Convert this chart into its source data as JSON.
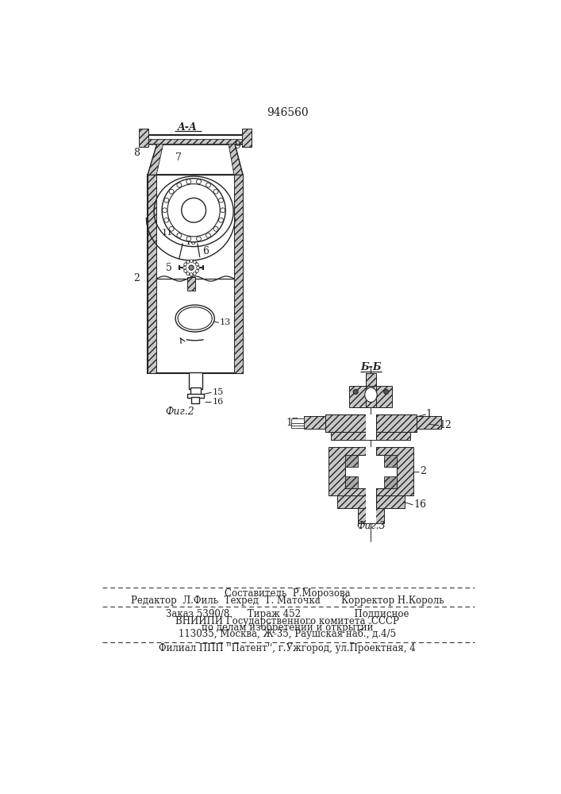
{
  "title": "946560",
  "bg_color": "#ffffff",
  "line_color": "#222222",
  "fig2_label": "Фиг.2",
  "fig3_label": "Фиг.3",
  "section_aa": "A-A",
  "section_bb": "Б-Б",
  "footer_lines": [
    "Составитель  Р.Морозова",
    "Редактор  Л.Филь  Техред  Т. Маточка       Корректор Н.Король",
    "Заказ 5390/8      Тираж 452                  Подписное",
    "ВНИИПИ Государственного комитета  СССР",
    "по делам изобретений и открытий",
    "113035, Москва, Ж-35, Раушская наб., д.4/5",
    "Филиал ППП ''Патент'', г.Ужгород, ул.Проектная, 4"
  ]
}
